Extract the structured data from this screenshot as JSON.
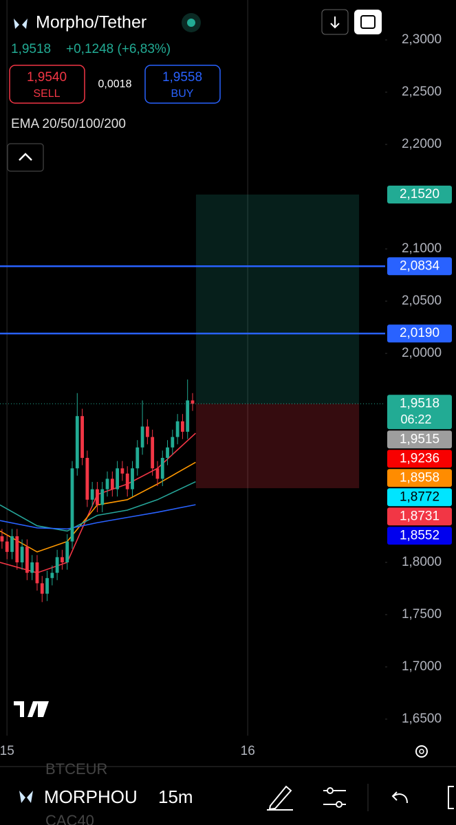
{
  "header": {
    "symbol": "Morpho/Tether",
    "price": "1,9518",
    "change": "+0,1248 (+6,83%)",
    "sell_price": "1,9540",
    "sell_label": "SELL",
    "spread": "0,0018",
    "buy_price": "1,9558",
    "buy_label": "BUY",
    "indicator": "EMA 20/50/100/200"
  },
  "chart_data": {
    "type": "candlestick",
    "up_color": "#22ab94",
    "down_color": "#f23645",
    "x": [
      -0.5,
      0,
      0.5,
      1,
      1.5,
      2,
      2.5,
      3,
      3.5,
      4,
      4.5,
      5,
      5.5,
      6,
      6.5,
      7,
      7.5,
      8,
      8.5,
      9,
      9.5,
      10,
      10.5,
      11,
      11.5,
      12,
      12.5,
      13,
      13.5,
      14,
      14.5,
      15,
      15.5,
      16,
      16.5,
      17,
      17.5,
      18,
      18.5
    ],
    "open": [
      1.825,
      1.82,
      1.81,
      1.825,
      1.8,
      1.815,
      1.79,
      1.8,
      1.78,
      1.77,
      1.785,
      1.79,
      1.805,
      1.8,
      1.82,
      1.89,
      1.94,
      1.9,
      1.86,
      1.87,
      1.855,
      1.87,
      1.88,
      1.87,
      1.89,
      1.885,
      1.87,
      1.89,
      1.91,
      1.93,
      1.92,
      1.89,
      1.88,
      1.9,
      1.91,
      1.92,
      1.935,
      1.925,
      1.955
    ],
    "high": [
      1.832,
      1.827,
      1.832,
      1.832,
      1.822,
      1.822,
      1.807,
      1.807,
      1.787,
      1.792,
      1.797,
      1.812,
      1.812,
      1.827,
      1.897,
      1.962,
      1.947,
      1.907,
      1.877,
      1.877,
      1.877,
      1.887,
      1.887,
      1.897,
      1.897,
      1.892,
      1.897,
      1.917,
      1.955,
      1.937,
      1.927,
      1.897,
      1.907,
      1.917,
      1.927,
      1.942,
      1.942,
      1.975,
      1.962
    ],
    "low": [
      1.813,
      1.803,
      1.803,
      1.793,
      1.793,
      1.783,
      1.783,
      1.773,
      1.762,
      1.763,
      1.778,
      1.783,
      1.793,
      1.793,
      1.813,
      1.883,
      1.893,
      1.853,
      1.853,
      1.848,
      1.848,
      1.863,
      1.863,
      1.863,
      1.878,
      1.863,
      1.863,
      1.883,
      1.903,
      1.913,
      1.883,
      1.873,
      1.873,
      1.893,
      1.903,
      1.913,
      1.918,
      1.918,
      1.945
    ],
    "close": [
      1.82,
      1.81,
      1.825,
      1.8,
      1.815,
      1.79,
      1.8,
      1.78,
      1.77,
      1.785,
      1.79,
      1.805,
      1.8,
      1.82,
      1.89,
      1.94,
      1.9,
      1.86,
      1.87,
      1.855,
      1.87,
      1.88,
      1.87,
      1.89,
      1.885,
      1.87,
      1.89,
      1.91,
      1.93,
      1.92,
      1.89,
      1.88,
      1.9,
      1.91,
      1.92,
      1.935,
      1.925,
      1.955,
      1.9518
    ],
    "line_x": [
      -0.7,
      3,
      6,
      9,
      12,
      15,
      18.8
    ],
    "lines": [
      {
        "color": "#f23645",
        "values": [
          1.8,
          1.79,
          1.8,
          1.865,
          1.875,
          1.89,
          1.9236
        ]
      },
      {
        "color": "#ff9800",
        "values": [
          1.83,
          1.81,
          1.82,
          1.855,
          1.86,
          1.875,
          1.8958
        ]
      },
      {
        "color": "#26a69a",
        "values": [
          1.855,
          1.835,
          1.83,
          1.845,
          1.85,
          1.86,
          1.8772
        ]
      },
      {
        "color": "#2962ff",
        "values": [
          1.84,
          1.833,
          1.832,
          1.838,
          1.843,
          1.848,
          1.8552
        ]
      }
    ],
    "position": {
      "x": [
        18.84,
        35.1
      ],
      "target": 2.152,
      "entry": 1.9518,
      "stop": 1.871
    },
    "price_labels": [
      {
        "value": 2.152,
        "label": "2,1520",
        "color": "#22ab94"
      },
      {
        "value": 2.0834,
        "label": "2,0834",
        "color": "#2962ff",
        "line": true
      },
      {
        "value": 2.019,
        "label": "2,0190",
        "color": "#2962ff",
        "line": true
      },
      {
        "value": 1.9518,
        "label": "1,9518",
        "sub": "06:22",
        "color": "#22ab94",
        "dotted": true
      },
      {
        "value": 1.9515,
        "label": "1,9515",
        "color": "#9e9e9e"
      },
      {
        "value": 1.9236,
        "label": "1,9236",
        "color": "#f80000"
      },
      {
        "value": 1.8958,
        "label": "1,8958",
        "color": "#ff8c00"
      },
      {
        "value": 1.8772,
        "label": "1,8772",
        "color": "#00e5ff",
        "dark": true
      },
      {
        "value": 1.8731,
        "label": "1,8731",
        "color": "#f23645"
      },
      {
        "value": 1.8552,
        "label": "1,8552",
        "color": "#0000ee"
      }
    ],
    "xlim": [
      -0.7,
      37.7
    ],
    "ylim": [
      1.6342,
      2.3382
    ],
    "xticks": [
      {
        "value": 0,
        "label": "15"
      },
      {
        "value": 24,
        "label": "16"
      }
    ],
    "yticks": [
      {
        "value": 2.3,
        "label": "2,3000"
      },
      {
        "value": 2.25,
        "label": "2,2500"
      },
      {
        "value": 2.2,
        "label": "2,2000"
      },
      {
        "value": 2.1,
        "label": "2,1000"
      },
      {
        "value": 2.05,
        "label": "2,0500"
      },
      {
        "value": 2.0,
        "label": "2,0000"
      },
      {
        "value": 1.8,
        "label": "1,8000"
      },
      {
        "value": 1.75,
        "label": "1,7500"
      },
      {
        "value": 1.7,
        "label": "1,7000"
      },
      {
        "value": 1.65,
        "label": "1,6500"
      }
    ]
  },
  "footer": {
    "ghost_above": "BTCEUR",
    "symbol": "MORPHOU",
    "interval": "15m",
    "ghost_below": "CAC40"
  }
}
